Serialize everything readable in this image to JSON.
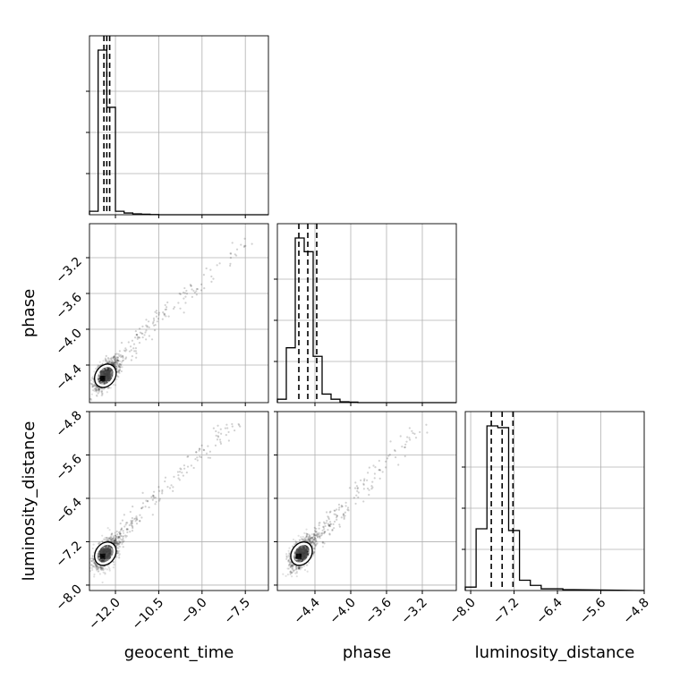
{
  "chart_data": {
    "type": "scatter",
    "parameters": [
      "geocent_time",
      "phase",
      "luminosity_distance"
    ],
    "ranges": {
      "geocent_time": [
        -12.9,
        -6.7
      ],
      "phase": [
        -4.82,
        -2.82
      ],
      "luminosity_distance": [
        -8.1,
        -4.8
      ]
    },
    "ticks": {
      "geocent_time": [
        -12.0,
        -10.5,
        -9.0,
        -7.5
      ],
      "phase": [
        -4.4,
        -4.0,
        -3.6,
        -3.2
      ],
      "luminosity_distance": [
        -8.0,
        -7.2,
        -6.4,
        -5.6,
        -4.8
      ]
    },
    "tick_labels": {
      "geocent_time": [
        "−12.0",
        "−10.5",
        "−9.0",
        "−7.5"
      ],
      "phase": [
        "−4.4",
        "−4.0",
        "−3.6",
        "−3.2"
      ],
      "luminosity_distance": [
        "−8.0",
        "−7.2",
        "−6.4",
        "−5.6",
        "−4.8"
      ]
    },
    "quantiles": {
      "geocent_time": [
        -12.4,
        -12.3,
        -12.2
      ],
      "phase": [
        -4.58,
        -4.48,
        -4.38
      ],
      "luminosity_distance": [
        -7.62,
        -7.42,
        -7.22
      ]
    },
    "histograms": {
      "geocent_time": {
        "edges": [
          -12.9,
          -12.6,
          -12.3,
          -12.0,
          -11.7,
          -11.4,
          -11.1,
          -10.8,
          -10.5,
          -10.2
        ],
        "counts": [
          0.02,
          0.95,
          0.62,
          0.02,
          0.01,
          0.005,
          0.003,
          0.001,
          0
        ]
      },
      "phase": {
        "edges": [
          -4.82,
          -4.72,
          -4.62,
          -4.52,
          -4.42,
          -4.32,
          -4.22,
          -4.12,
          -4.02,
          -3.92,
          -3.82
        ],
        "counts": [
          0.02,
          0.32,
          0.96,
          0.88,
          0.27,
          0.05,
          0.02,
          0.005,
          0.003,
          0
        ]
      },
      "luminosity_distance": {
        "edges": [
          -8.1,
          -7.9,
          -7.7,
          -7.5,
          -7.3,
          -7.1,
          -6.9,
          -6.7,
          -6.5,
          -6.3,
          -6.1
        ],
        "counts": [
          0.02,
          0.36,
          0.96,
          0.95,
          0.35,
          0.06,
          0.03,
          0.01,
          0.01,
          0.005
        ]
      }
    },
    "correlations": {
      "phase|geocent_time": {
        "center": [
          -12.35,
          -4.52
        ],
        "trend": [
          [
            -12.35,
            -4.52
          ],
          [
            -11.5,
            -4.2
          ],
          [
            -10.5,
            -3.85
          ],
          [
            -9.0,
            -3.45
          ],
          [
            -7.5,
            -3.05
          ]
        ]
      },
      "luminosity_distance|geocent_time": {
        "center": [
          -12.35,
          -7.42
        ],
        "trend": [
          [
            -12.35,
            -7.42
          ],
          [
            -11.5,
            -6.9
          ],
          [
            -10.5,
            -6.3
          ],
          [
            -9.0,
            -5.55
          ],
          [
            -7.8,
            -5.0
          ]
        ]
      },
      "luminosity_distance|phase": {
        "center": [
          -4.55,
          -7.42
        ],
        "trend": [
          [
            -4.55,
            -7.42
          ],
          [
            -4.25,
            -6.9
          ],
          [
            -4.0,
            -6.45
          ],
          [
            -3.6,
            -5.7
          ],
          [
            -3.2,
            -5.05
          ]
        ]
      }
    },
    "grid": true,
    "grid_color": "#b0b0b0",
    "point_color": "#000000"
  }
}
